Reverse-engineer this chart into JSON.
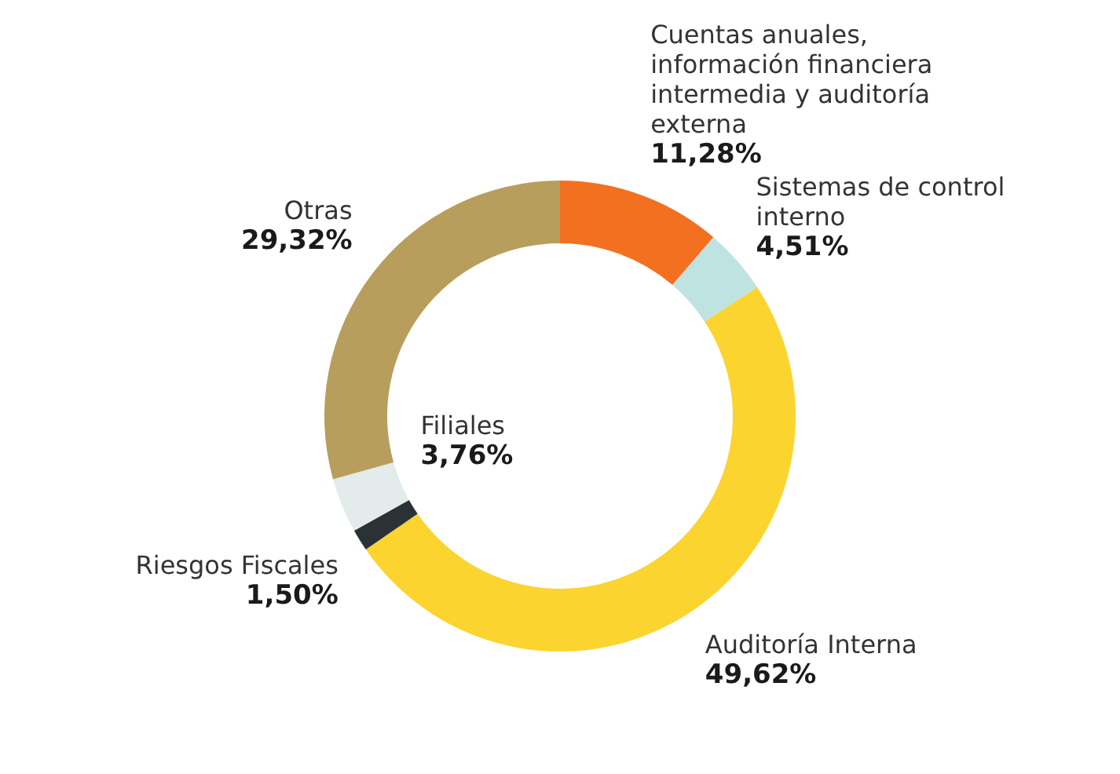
{
  "chart_data": {
    "type": "donut",
    "categories": [
      "Cuentas anuales, información financiera intermedia y auditoría externa",
      "Sistemas de control interno",
      "Auditoría Interna",
      "Riesgos Fiscales",
      "Filiales",
      "Otras"
    ],
    "values": [
      11.28,
      4.51,
      49.62,
      1.5,
      3.76,
      29.32
    ],
    "colors": [
      "#f37021",
      "#bfe3e0",
      "#fbd430",
      "#2a3235",
      "#e3ebeb",
      "#b89e5c"
    ],
    "value_labels": [
      "11,28%",
      "4,51%",
      "49,62%",
      "1,50%",
      "3,76%",
      "29,32%"
    ]
  }
}
